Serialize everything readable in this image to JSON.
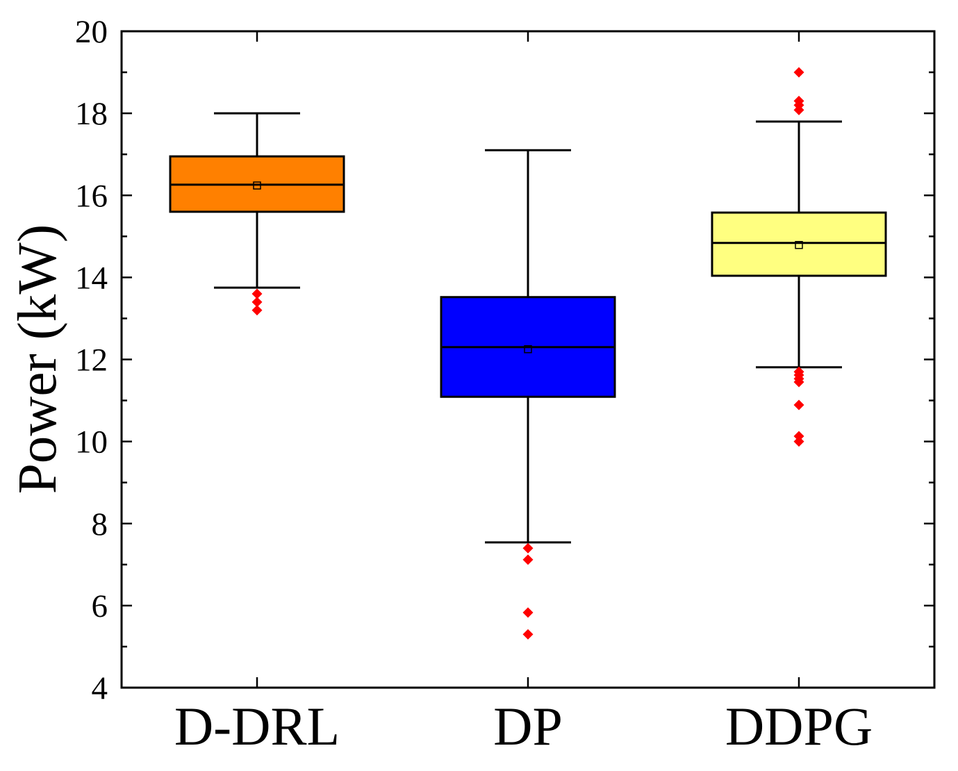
{
  "chart_data": {
    "type": "box",
    "categories": [
      "D-DRL",
      "DP",
      "DDPG"
    ],
    "ylabel": "Power (kW)",
    "ylim": [
      4,
      20
    ],
    "yticks": [
      4,
      6,
      8,
      10,
      12,
      14,
      16,
      18,
      20
    ],
    "grid": false,
    "outlier_color": "#FF0000",
    "boxes": [
      {
        "color": "#FF8000",
        "whisker_low": 13.75,
        "q1": 15.6,
        "median": 16.26,
        "mean": 16.24,
        "q3": 16.95,
        "whisker_high": 18.0,
        "outliers": [
          13.6,
          13.4,
          13.2
        ]
      },
      {
        "color": "#0000FF",
        "whisker_low": 7.54,
        "q1": 11.09,
        "median": 12.3,
        "mean": 12.25,
        "q3": 13.52,
        "whisker_high": 17.1,
        "outliers": [
          7.4,
          7.12,
          5.83,
          5.3
        ]
      },
      {
        "color": "#FFFF80",
        "whisker_low": 11.81,
        "q1": 14.04,
        "median": 14.84,
        "mean": 14.79,
        "q3": 15.58,
        "whisker_high": 17.8,
        "outliers": [
          19.0,
          18.3,
          18.2,
          18.08,
          11.7,
          11.62,
          11.53,
          11.45,
          10.89,
          10.13,
          10.0
        ]
      }
    ]
  }
}
